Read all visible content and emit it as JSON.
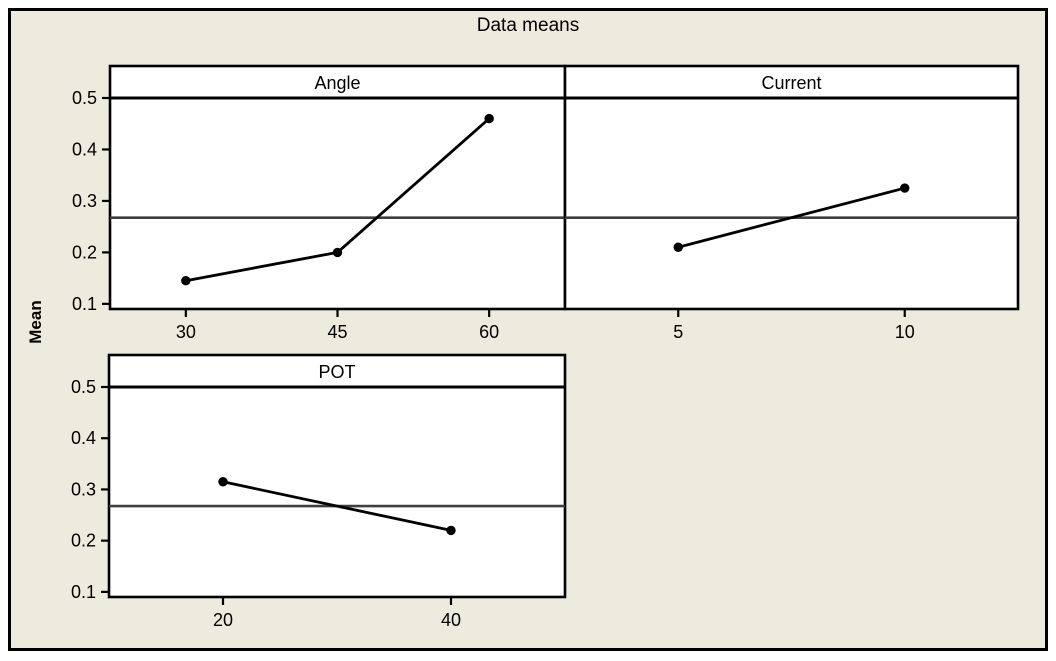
{
  "figure": {
    "title": "Data means",
    "y_axis_title": "Mean",
    "colors": {
      "background": "#EDEADE",
      "panel_fill": "#FFFFFF",
      "frame": "#000000",
      "data_line": "#000000",
      "marker": "#000000",
      "reference_line": "#3F3F3F",
      "text": "#000000"
    }
  },
  "chart_data": {
    "type": "line",
    "title": "Data means",
    "ylabel": "Mean",
    "ylim": [
      0.09,
      0.5
    ],
    "yticks": [
      0.1,
      0.2,
      0.3,
      0.4,
      0.5
    ],
    "grand_mean_reference": 0.2675,
    "legend": "none",
    "grid": "off",
    "panels": [
      {
        "label": "Angle",
        "categories": [
          30,
          45,
          60
        ],
        "values": [
          0.145,
          0.2,
          0.46
        ]
      },
      {
        "label": "Current",
        "categories": [
          5,
          10
        ],
        "values": [
          0.21,
          0.325
        ]
      },
      {
        "label": "POT",
        "categories": [
          20,
          40
        ],
        "values": [
          0.315,
          0.22
        ]
      }
    ]
  }
}
